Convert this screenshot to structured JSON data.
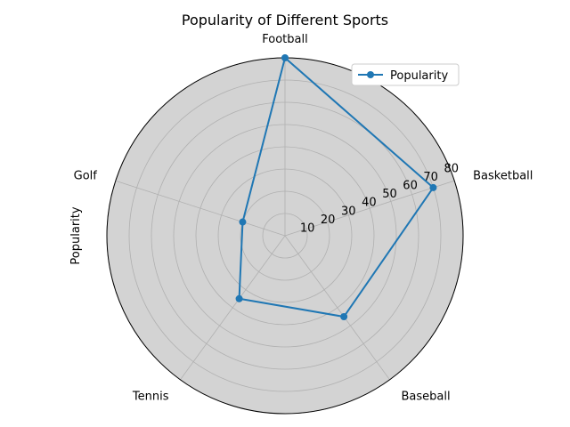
{
  "chart_data": {
    "type": "radar",
    "title": "Popularity of Different Sports",
    "ylabel": "Popularity",
    "categories": [
      "Football",
      "Basketball",
      "Baseball",
      "Tennis",
      "Golf"
    ],
    "series": [
      {
        "name": "Popularity",
        "values": [
          80,
          70,
          45,
          35,
          20
        ]
      }
    ],
    "radial_ticks": [
      "10",
      "20",
      "30",
      "40",
      "50",
      "60",
      "70",
      "80"
    ],
    "radial_tick_values": [
      10,
      20,
      30,
      40,
      50,
      60,
      70,
      80
    ],
    "rlim": [
      0,
      80
    ],
    "grid": true,
    "legend_position": "top-right",
    "colors": {
      "series": "#1f77b4",
      "background": "#d3d3d3",
      "grid": "#b0b0b0"
    }
  }
}
